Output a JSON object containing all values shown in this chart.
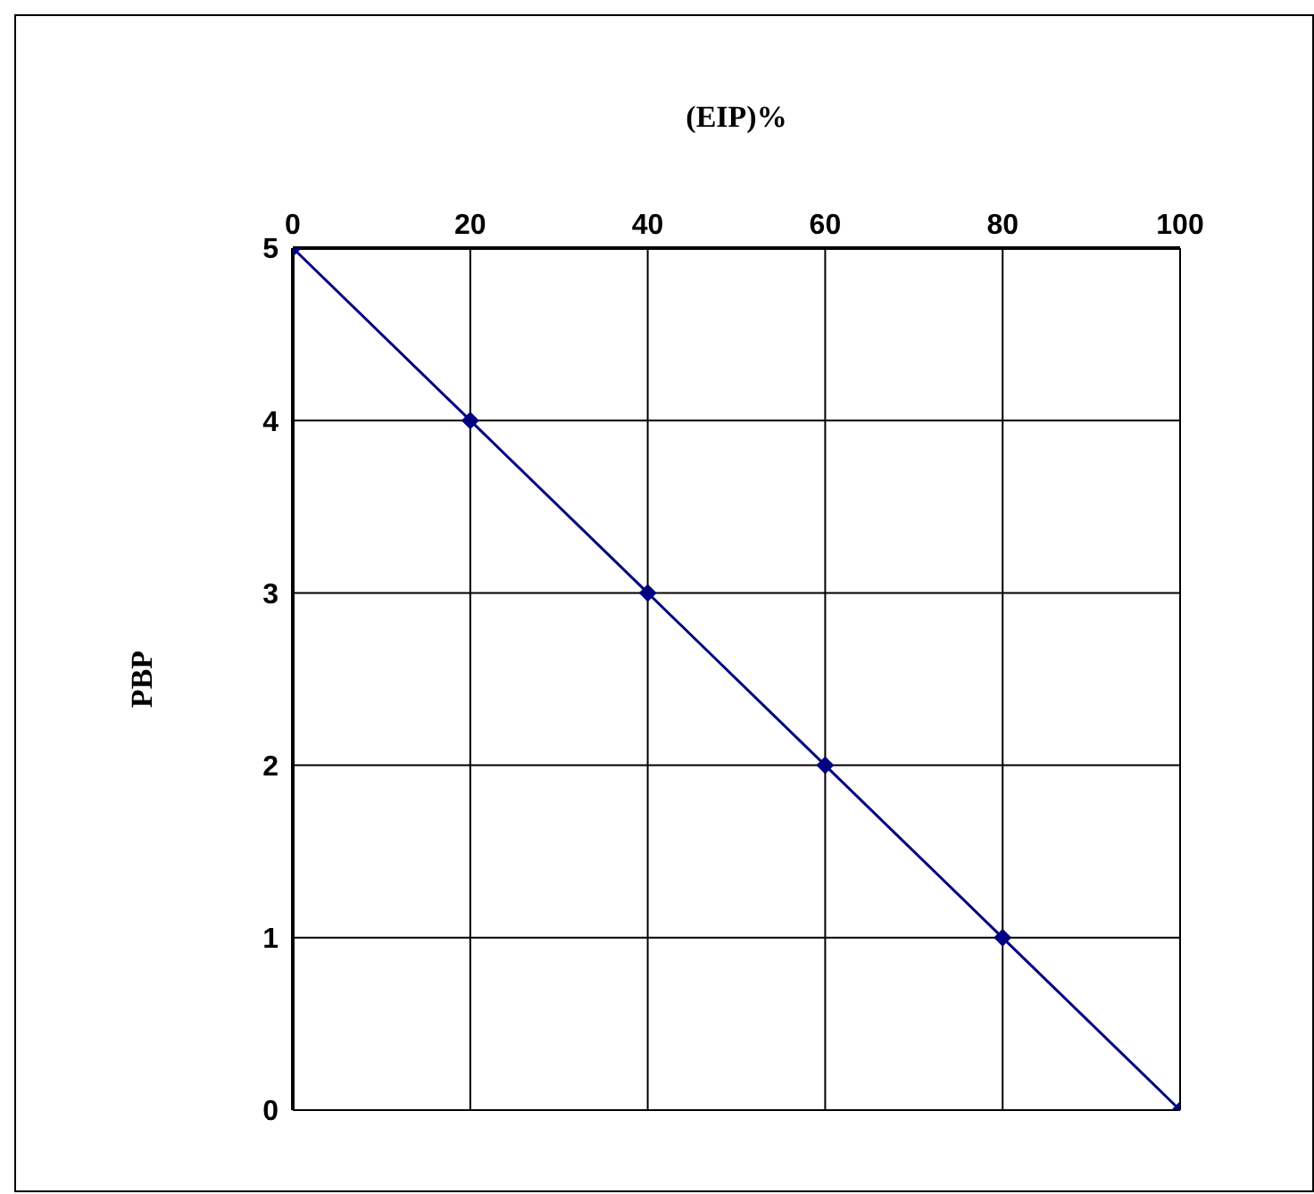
{
  "chart_data": {
    "type": "line",
    "xlabel": "(EIP)%",
    "ylabel": "PBP",
    "x": [
      0,
      20,
      40,
      60,
      80,
      100
    ],
    "series": [
      {
        "color": "#000080",
        "values": [
          5,
          4,
          3,
          2,
          1,
          0
        ]
      }
    ],
    "xlim": [
      0,
      100
    ],
    "xticks": [
      0,
      20,
      40,
      60,
      80,
      100
    ],
    "ylim": [
      0,
      5
    ],
    "yticks": [
      0,
      1,
      2,
      3,
      4,
      5
    ],
    "grid": true,
    "marker": "diamond",
    "line_style": "solid",
    "legend": false
  }
}
